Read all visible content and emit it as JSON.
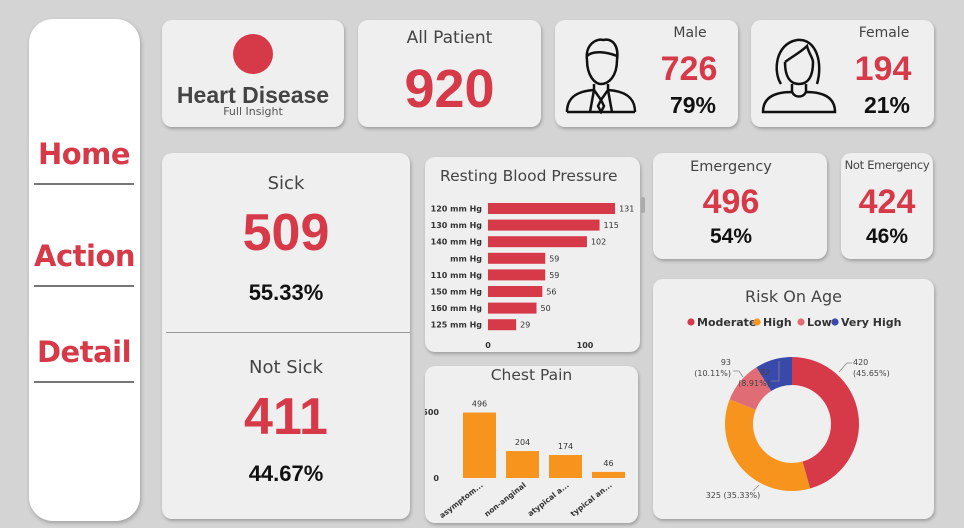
{
  "nav": {
    "items": [
      {
        "label": "Home"
      },
      {
        "label": "Action"
      },
      {
        "label": "Detail"
      }
    ]
  },
  "logo": {
    "title": "Heart Disease",
    "subtitle": "Full Insight"
  },
  "kpi": {
    "all_patient": {
      "label": "All Patient",
      "value": "920"
    },
    "male": {
      "label": "Male",
      "value": "726",
      "pct": "79%"
    },
    "female": {
      "label": "Female",
      "value": "194",
      "pct": "21%"
    },
    "sick": {
      "label": "Sick",
      "value": "509",
      "pct": "55.33%"
    },
    "not_sick": {
      "label": "Not Sick",
      "value": "411",
      "pct": "44.67%"
    },
    "emergency": {
      "label": "Emergency",
      "value": "496",
      "pct": "54%"
    },
    "not_emergency": {
      "label": "Not Emergency",
      "value": "424",
      "pct": "46%"
    }
  },
  "colors": {
    "accent": "#d63a49",
    "orange": "#f7941d",
    "pink": "#e06c75",
    "navy": "#3949ab"
  },
  "chart_data": [
    {
      "type": "bar",
      "orientation": "horizontal",
      "title": "Resting Blood Pressure",
      "categories": [
        "120 mm Hg",
        "130 mm Hg",
        "140 mm Hg",
        "mm Hg",
        "110 mm Hg",
        "150 mm Hg",
        "160 mm Hg",
        "125 mm Hg"
      ],
      "values": [
        131,
        115,
        102,
        59,
        59,
        56,
        50,
        29
      ],
      "xticks": [
        "0",
        "100"
      ],
      "xlim": [
        0,
        140
      ],
      "color": "#d63a49"
    },
    {
      "type": "bar",
      "title": "Chest Pain",
      "categories": [
        "asymptom...",
        "non-anginal",
        "atypical a...",
        "typical an..."
      ],
      "values": [
        496,
        204,
        174,
        46
      ],
      "yticks": [
        "500",
        "0"
      ],
      "ylim": [
        0,
        500
      ],
      "color": "#f7941d"
    },
    {
      "type": "pie",
      "title": "Risk On Age",
      "legend": [
        "Moderate",
        "High",
        "Low",
        "Very High"
      ],
      "slices": [
        {
          "name": "Moderate",
          "value": 420,
          "label": "420",
          "pct": "(45.65%)",
          "color": "#d63a49"
        },
        {
          "name": "High",
          "value": 325,
          "label": "325 (35.33%)",
          "pct": "",
          "color": "#f7941d"
        },
        {
          "name": "Low",
          "value": 93,
          "label": "93",
          "pct": "(10.11%)",
          "color": "#e06c75"
        },
        {
          "name": "Very High",
          "value": 82,
          "label": "82",
          "pct": "(8.91%)",
          "color": "#3949ab"
        }
      ]
    }
  ]
}
